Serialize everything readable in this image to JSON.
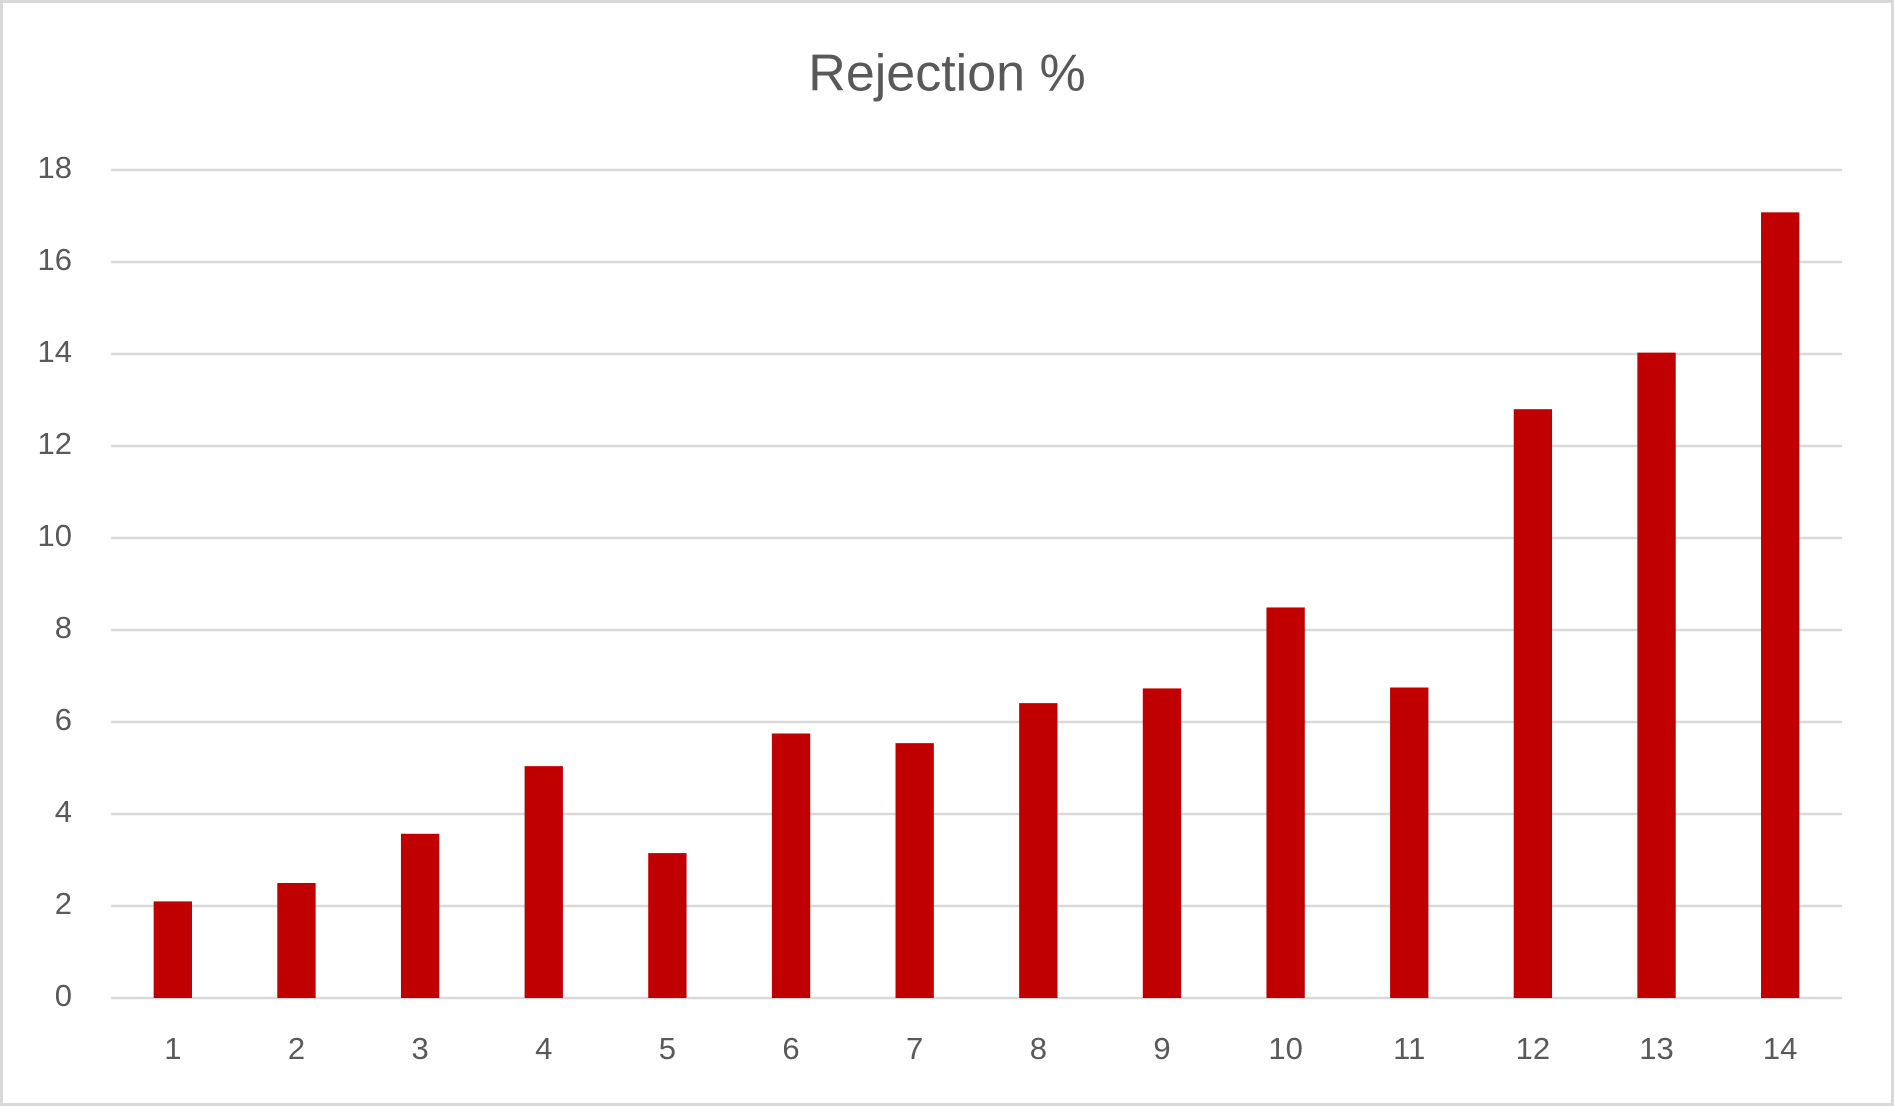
{
  "chart_data": {
    "type": "bar",
    "title": "Rejection %",
    "categories": [
      "1",
      "2",
      "3",
      "4",
      "5",
      "6",
      "7",
      "8",
      "9",
      "10",
      "11",
      "12",
      "13",
      "14"
    ],
    "values": [
      2.1,
      2.5,
      3.57,
      5.04,
      3.15,
      5.75,
      5.54,
      6.41,
      6.73,
      8.49,
      6.75,
      12.8,
      14.03,
      17.08
    ],
    "color": "#c00000",
    "ylim": [
      0,
      18
    ],
    "yticks": [
      0,
      2,
      4,
      6,
      8,
      10,
      12,
      14,
      16,
      18
    ],
    "grid": true
  }
}
